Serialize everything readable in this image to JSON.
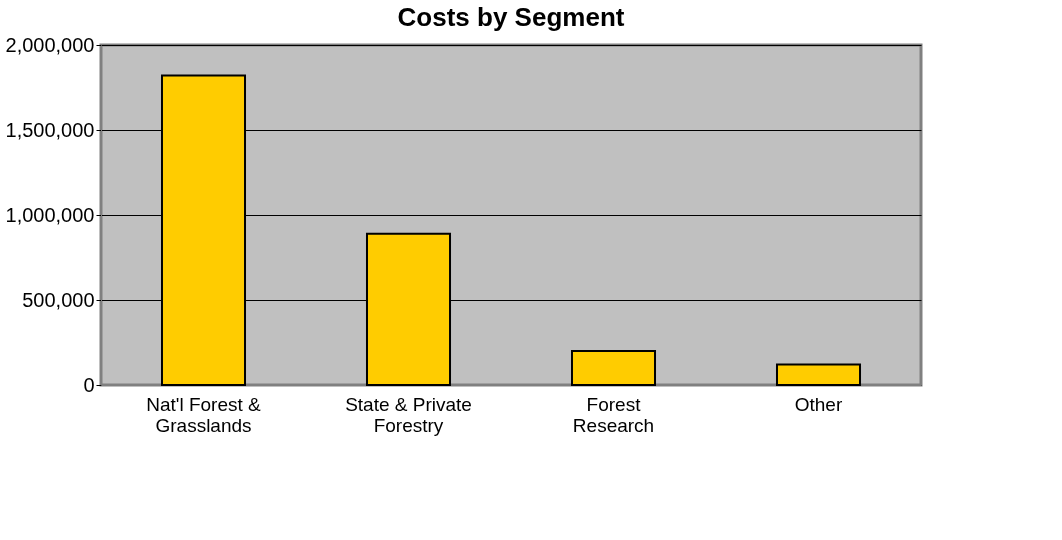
{
  "chart_data": {
    "type": "bar",
    "title": "Costs by Segment",
    "categories": [
      "Nat'l Forest & Grasslands",
      "State & Private Forestry",
      "Forest Research",
      "Other"
    ],
    "values": [
      1820000,
      890000,
      200000,
      120000
    ],
    "color": "#ffcc00",
    "ylim": [
      0,
      2000000
    ],
    "yticks": [
      0,
      {
        "value": 500000,
        "label": "500,000"
      },
      {
        "value": 1000000,
        "label": "1,000,000"
      },
      {
        "value": 1500000,
        "label": "1,500,000"
      },
      {
        "value": 2000000,
        "label": "2,000,000"
      }
    ],
    "grid": "y"
  }
}
